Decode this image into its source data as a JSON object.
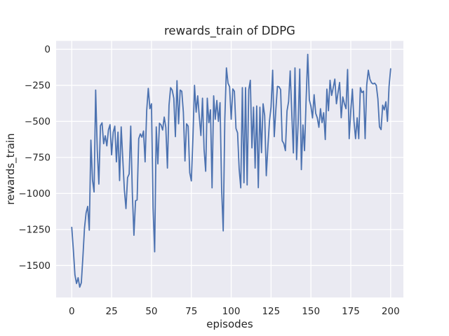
{
  "figure": {
    "title": "rewards_train of DDPG",
    "xlabel": "episodes",
    "ylabel": "rewards_train"
  },
  "colors": {
    "figure_background": "#ffffff",
    "axes_background": "#eaeaf2",
    "gridline": "#ffffff",
    "line": "#4c72b0",
    "text": "#262626"
  },
  "chart_data": {
    "type": "line",
    "title": "rewards_train of DDPG",
    "xlabel": "episodes",
    "ylabel": "rewards_train",
    "grid": true,
    "legend_position": "none",
    "x_mode": "index (episode number = array index, 0..200)",
    "xlim": [
      -9.8,
      208
    ],
    "ylim": [
      -1722,
      58
    ],
    "x_ticks": [
      {
        "pos": 0,
        "label": "0"
      },
      {
        "pos": 25,
        "label": "25"
      },
      {
        "pos": 50,
        "label": "50"
      },
      {
        "pos": 75,
        "label": "75"
      },
      {
        "pos": 100,
        "label": "100"
      },
      {
        "pos": 125,
        "label": "125"
      },
      {
        "pos": 150,
        "label": "150"
      },
      {
        "pos": 175,
        "label": "175"
      },
      {
        "pos": 200,
        "label": "200"
      }
    ],
    "y_ticks": [
      {
        "pos": 0,
        "label": "0"
      },
      {
        "pos": -250,
        "label": "−250"
      },
      {
        "pos": -500,
        "label": "−500"
      },
      {
        "pos": -750,
        "label": "−750"
      },
      {
        "pos": -1000,
        "label": "−1000"
      },
      {
        "pos": -1250,
        "label": "−1250"
      },
      {
        "pos": -1500,
        "label": "−1500"
      }
    ],
    "series": [
      {
        "name": "rewards_train",
        "color": "#4c72b0",
        "values": [
          -1235,
          -1390,
          -1565,
          -1625,
          -1585,
          -1650,
          -1620,
          -1440,
          -1240,
          -1135,
          -1090,
          -1255,
          -630,
          -906,
          -990,
          -283,
          -700,
          -935,
          -530,
          -510,
          -655,
          -600,
          -670,
          -560,
          -523,
          -732,
          -575,
          -533,
          -781,
          -575,
          -911,
          -538,
          -760,
          -975,
          -1105,
          -890,
          -865,
          -533,
          -1000,
          -1290,
          -1051,
          -1045,
          -620,
          -587,
          -610,
          -567,
          -781,
          -426,
          -271,
          -412,
          -378,
          -1100,
          -1405,
          -538,
          -795,
          -513,
          -525,
          -560,
          -470,
          -541,
          -824,
          -388,
          -266,
          -283,
          -339,
          -606,
          -218,
          -517,
          -283,
          -291,
          -436,
          -775,
          -517,
          -533,
          -856,
          -913,
          -614,
          -250,
          -436,
          -323,
          -469,
          -598,
          -339,
          -695,
          -846,
          -339,
          -509,
          -420,
          -961,
          -323,
          -485,
          -355,
          -500,
          -370,
          -969,
          -1260,
          -485,
          -129,
          -235,
          -260,
          -485,
          -275,
          -291,
          -549,
          -580,
          -832,
          -961,
          -266,
          -926,
          -266,
          -941,
          -281,
          -215,
          -684,
          -402,
          -824,
          -393,
          -960,
          -402,
          -717,
          -378,
          -460,
          -877,
          -678,
          -500,
          -400,
          -145,
          -606,
          -420,
          -257,
          -260,
          -280,
          -635,
          -654,
          -703,
          -428,
          -363,
          -150,
          -445,
          -719,
          -129,
          -765,
          -509,
          -137,
          -835,
          -525,
          -703,
          -347,
          -35,
          -350,
          -395,
          -476,
          -315,
          -444,
          -476,
          -541,
          -412,
          -509,
          -440,
          -626,
          -276,
          -426,
          -215,
          -320,
          -266,
          -207,
          -378,
          -300,
          -230,
          -475,
          -330,
          -378,
          -412,
          -140,
          -620,
          -426,
          -276,
          -499,
          -620,
          -475,
          -620,
          -266,
          -300,
          -290,
          -620,
          -247,
          -145,
          -208,
          -232,
          -240,
          -235,
          -250,
          -344,
          -538,
          -557,
          -388,
          -420,
          -364,
          -500,
          -258,
          -135
        ]
      }
    ]
  }
}
